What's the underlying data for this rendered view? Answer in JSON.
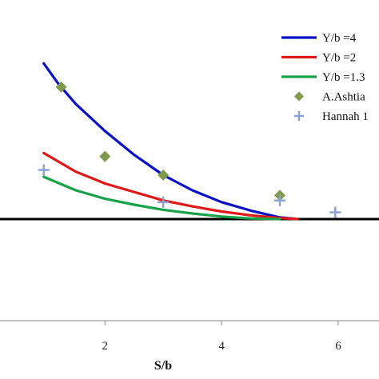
{
  "chart_data": {
    "type": "line",
    "title": "",
    "xlabel": "S/b",
    "ylabel": "",
    "x_ticks": [
      "2",
      "4",
      "6"
    ],
    "xlim": [
      0.2,
      6.7
    ],
    "ylim": [
      -0.6,
      1.2
    ],
    "grid": false,
    "legend_position": "top-right",
    "series": [
      {
        "name": "Y/b =4",
        "kind": "line",
        "color": "#0a12c8",
        "x": [
          0.95,
          1.2,
          1.5,
          2.0,
          2.5,
          3.0,
          3.5,
          4.0,
          4.5,
          5.0,
          5.3
        ],
        "y": [
          0.92,
          0.8,
          0.68,
          0.52,
          0.38,
          0.26,
          0.17,
          0.1,
          0.05,
          0.01,
          0.0
        ]
      },
      {
        "name": "Y/b =2",
        "kind": "line",
        "color": "#e01818",
        "x": [
          0.95,
          1.5,
          2.0,
          2.5,
          3.0,
          3.5,
          4.0,
          4.5,
          5.0,
          5.3
        ],
        "y": [
          0.39,
          0.28,
          0.21,
          0.16,
          0.11,
          0.075,
          0.045,
          0.022,
          0.006,
          0.0
        ]
      },
      {
        "name": "Y/b =1.3",
        "kind": "line",
        "color": "#17a34a",
        "x": [
          0.95,
          1.5,
          2.0,
          2.5,
          3.0,
          3.5,
          4.0,
          4.5,
          5.0
        ],
        "y": [
          0.25,
          0.17,
          0.12,
          0.085,
          0.055,
          0.033,
          0.015,
          0.004,
          0.0
        ]
      },
      {
        "name": "A.Ashtia",
        "kind": "scatter",
        "marker": "diamond",
        "color": "#7f9a4a",
        "x": [
          1.25,
          2.0,
          3.0,
          5.0
        ],
        "y": [
          0.78,
          0.37,
          0.26,
          0.14
        ]
      },
      {
        "name": "Hannah 1",
        "kind": "scatter",
        "marker": "plus",
        "color": "#8aa2d4",
        "x": [
          0.95,
          3.0,
          5.0,
          5.95
        ],
        "y": [
          0.29,
          0.1,
          0.11,
          0.04
        ]
      }
    ],
    "reference_line": {
      "y": 0,
      "color": "#000000"
    }
  }
}
